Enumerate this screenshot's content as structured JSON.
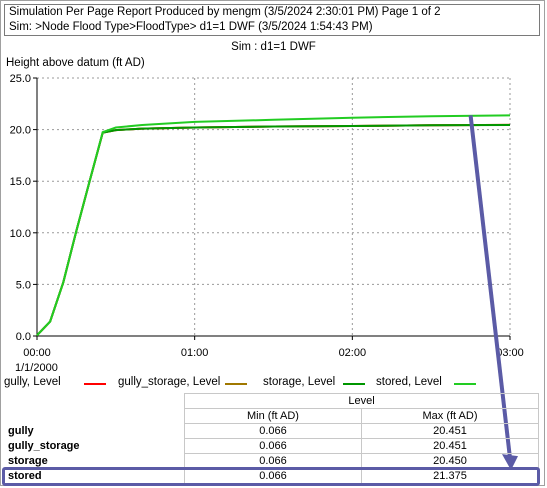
{
  "header": {
    "line1": "Simulation Per Page Report Produced by mengm (3/5/2024 2:30:01 PM) Page 1 of 2",
    "line2": "Sim: >Node Flood Type>FloodType> d1=1 DWF (3/5/2024 1:54:43 PM)"
  },
  "chart_title": "Sim : d1=1 DWF",
  "chart_data": {
    "type": "line",
    "ylabel": "Height above datum (ft AD)",
    "xlabel": "",
    "x_date_label": "1/1/2000",
    "xlim": [
      0,
      180
    ],
    "ylim": [
      0,
      25
    ],
    "x_ticks": [
      0,
      60,
      120,
      180
    ],
    "x_tick_labels": [
      "00:00",
      "01:00",
      "02:00",
      "03:00"
    ],
    "y_ticks": [
      0,
      5,
      10,
      15,
      20,
      25
    ],
    "y_tick_labels": [
      "0.0",
      "5.0",
      "10.0",
      "15.0",
      "20.0",
      "25.0"
    ],
    "grid": true,
    "legend_position": "bottom",
    "series": [
      {
        "name": "gully, Level",
        "color": "#ff0000",
        "x": [
          0,
          5,
          10,
          15,
          20,
          25,
          30,
          40,
          60,
          90,
          120,
          150,
          180
        ],
        "y": [
          0.066,
          1.4,
          5.2,
          10.2,
          15.0,
          19.7,
          19.95,
          20.1,
          20.2,
          20.3,
          20.35,
          20.42,
          20.451
        ]
      },
      {
        "name": "gully_storage, Level",
        "color": "#a07800",
        "x": [
          0,
          5,
          10,
          15,
          20,
          25,
          30,
          40,
          60,
          90,
          120,
          150,
          180
        ],
        "y": [
          0.066,
          1.4,
          5.2,
          10.2,
          15.0,
          19.7,
          19.95,
          20.1,
          20.2,
          20.3,
          20.35,
          20.42,
          20.451
        ]
      },
      {
        "name": "storage, Level",
        "color": "#009600",
        "x": [
          0,
          5,
          10,
          15,
          20,
          25,
          30,
          40,
          60,
          90,
          120,
          150,
          180
        ],
        "y": [
          0.066,
          1.4,
          5.2,
          10.2,
          15.0,
          19.7,
          19.95,
          20.1,
          20.2,
          20.3,
          20.35,
          20.42,
          20.45
        ]
      },
      {
        "name": "stored, Level",
        "color": "#22cc22",
        "x": [
          0,
          5,
          10,
          15,
          20,
          25,
          30,
          40,
          60,
          90,
          120,
          150,
          180
        ],
        "y": [
          0.066,
          1.4,
          5.2,
          10.2,
          15.0,
          19.75,
          20.2,
          20.45,
          20.75,
          20.95,
          21.15,
          21.3,
          21.375
        ]
      }
    ],
    "annotation": {
      "type": "arrow",
      "color": "#5b5ba6",
      "from": [
        165,
        21.375
      ],
      "to": [
        180,
        -13
      ]
    }
  },
  "table": {
    "group_header": "Level",
    "col_min": "Min (ft AD)",
    "col_max": "Max (ft AD)",
    "rows": [
      {
        "name": "gully",
        "min": "0.066",
        "max": "20.451"
      },
      {
        "name": "gully_storage",
        "min": "0.066",
        "max": "20.451"
      },
      {
        "name": "storage",
        "min": "0.066",
        "max": "20.450"
      },
      {
        "name": "stored",
        "min": "0.066",
        "max": "21.375"
      }
    ]
  },
  "colors": {
    "highlight_box": "#5b5ba6"
  }
}
